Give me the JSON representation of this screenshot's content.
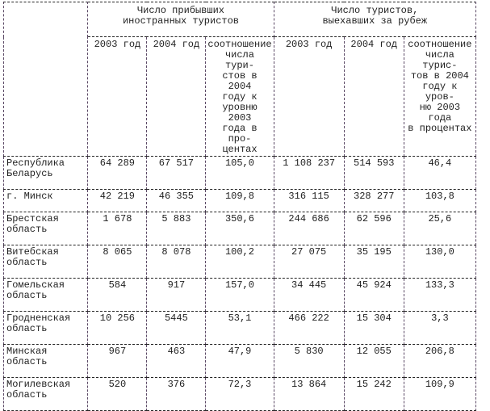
{
  "table": {
    "group_headers": [
      "Число прибывших\nиностранных туристов",
      "Число туристов,\nвыехавших за рубеж"
    ],
    "columns": [
      "2003 год",
      "2004 год",
      "соотношение\nчисла тури-\nстов в 2004\nгоду к\nуровню 2003\nгода в про-\nцентах",
      "2003 год",
      "2004 год",
      "соотношение\nчисла турис-\nтов в 2004\nгоду к уров-\nню 2003 года\nв процентах"
    ],
    "rows": [
      {
        "name": "Республика\nБеларусь",
        "values": [
          "64 289",
          "67 517",
          "105,0",
          "1 108 237",
          "514 593",
          "46,4"
        ]
      },
      {
        "name": "г. Минск",
        "values": [
          "42 219",
          "46 355",
          "109,8",
          "316 115",
          "328 277",
          "103,8"
        ]
      },
      {
        "name": "Брестская\nобласть",
        "values": [
          "1 678",
          "5 883",
          "350,6",
          "244 686",
          "62 596",
          "25,6"
        ]
      },
      {
        "name": "Витебская\nобласть",
        "values": [
          "8 065",
          "8 078",
          "100,2",
          "27 075",
          "35 195",
          "130,0"
        ]
      },
      {
        "name": "Гомельская\nобласть",
        "values": [
          "584",
          "917",
          "157,0",
          "34 445",
          "45 924",
          "133,3"
        ]
      },
      {
        "name": "Гродненская\nобласть",
        "values": [
          "10 256",
          "5445",
          "53,1",
          "466 222",
          "15 304",
          "3,3"
        ]
      },
      {
        "name": "Минская\nобласть",
        "values": [
          "967",
          "463",
          "47,9",
          "5 830",
          "12 055",
          "206,8"
        ]
      },
      {
        "name": "Могилевская\nобласть",
        "values": [
          "520",
          "376",
          "72,3",
          "13 864",
          "15 242",
          "109,9"
        ]
      }
    ]
  },
  "colors": {
    "background": "#ffffff",
    "text": "#1f1f1f",
    "border_horizontal": "#242424",
    "border_vertical": "#5c4a66"
  }
}
